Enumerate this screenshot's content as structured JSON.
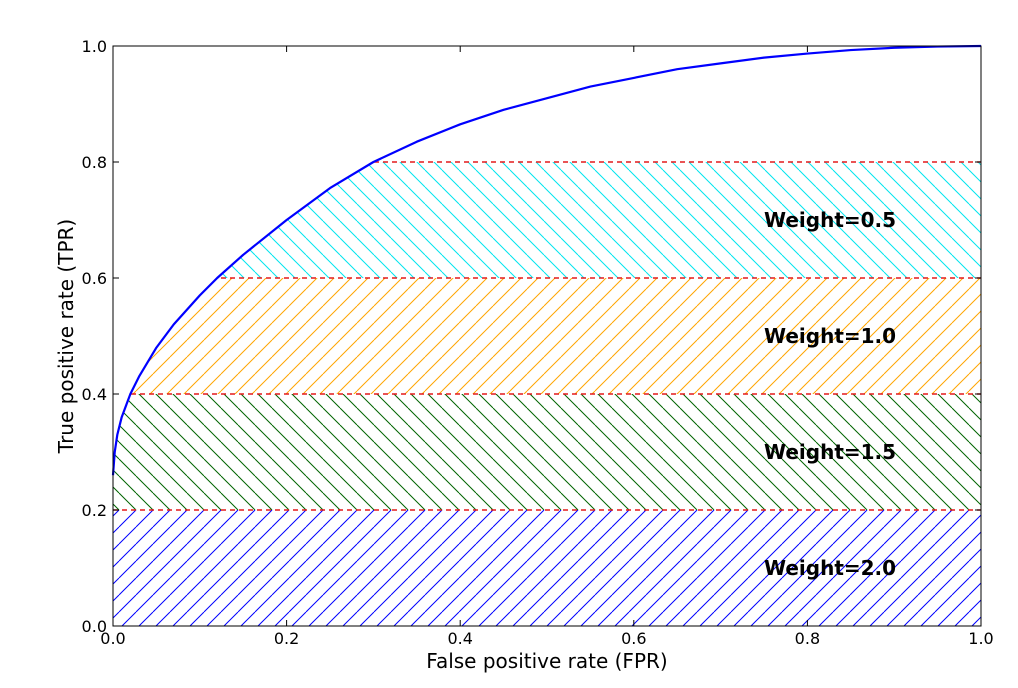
{
  "chart_data": {
    "type": "line",
    "title": "",
    "xlabel": "False positive rate (FPR)",
    "ylabel": "True positive rate (TPR)",
    "xlim": [
      0.0,
      1.0
    ],
    "ylim": [
      0.0,
      1.0
    ],
    "xticks": [
      0.0,
      0.2,
      0.4,
      0.6,
      0.8,
      1.0
    ],
    "yticks": [
      0.0,
      0.2,
      0.4,
      0.6,
      0.8,
      1.0
    ],
    "xtick_labels": [
      "0.0",
      "0.2",
      "0.4",
      "0.6",
      "0.8",
      "1.0"
    ],
    "ytick_labels": [
      "0.0",
      "0.2",
      "0.4",
      "0.6",
      "0.8",
      "1.0"
    ],
    "grid": false,
    "legend": "none",
    "series": [
      {
        "color": "#0000ff",
        "x": [
          0.0,
          0.002,
          0.005,
          0.01,
          0.02,
          0.03,
          0.05,
          0.07,
          0.1,
          0.12,
          0.15,
          0.2,
          0.25,
          0.3,
          0.35,
          0.4,
          0.45,
          0.5,
          0.55,
          0.6,
          0.65,
          0.7,
          0.75,
          0.8,
          0.85,
          0.9,
          0.95,
          1.0
        ],
        "y": [
          0.26,
          0.3,
          0.33,
          0.36,
          0.4,
          0.43,
          0.48,
          0.52,
          0.57,
          0.6,
          0.64,
          0.7,
          0.755,
          0.8,
          0.835,
          0.865,
          0.89,
          0.91,
          0.93,
          0.945,
          0.96,
          0.97,
          0.98,
          0.987,
          0.993,
          0.997,
          0.999,
          1.0
        ]
      }
    ],
    "thresholds": [
      0.2,
      0.4,
      0.6,
      0.8
    ],
    "threshold_color": "#e31a1c",
    "bands": [
      {
        "label": "Weight=2.0",
        "ymin": 0.0,
        "ymax": 0.2,
        "color": "#0000ff",
        "hatch": "forward"
      },
      {
        "label": "Weight=1.5",
        "ymin": 0.2,
        "ymax": 0.4,
        "color": "#006400",
        "hatch": "backward"
      },
      {
        "label": "Weight=1.0",
        "ymin": 0.4,
        "ymax": 0.6,
        "color": "#ffa500",
        "hatch": "forward"
      },
      {
        "label": "Weight=0.5",
        "ymin": 0.6,
        "ymax": 0.8,
        "color": "#00e5ee",
        "hatch": "backward"
      }
    ],
    "band_label_x": 0.75
  }
}
